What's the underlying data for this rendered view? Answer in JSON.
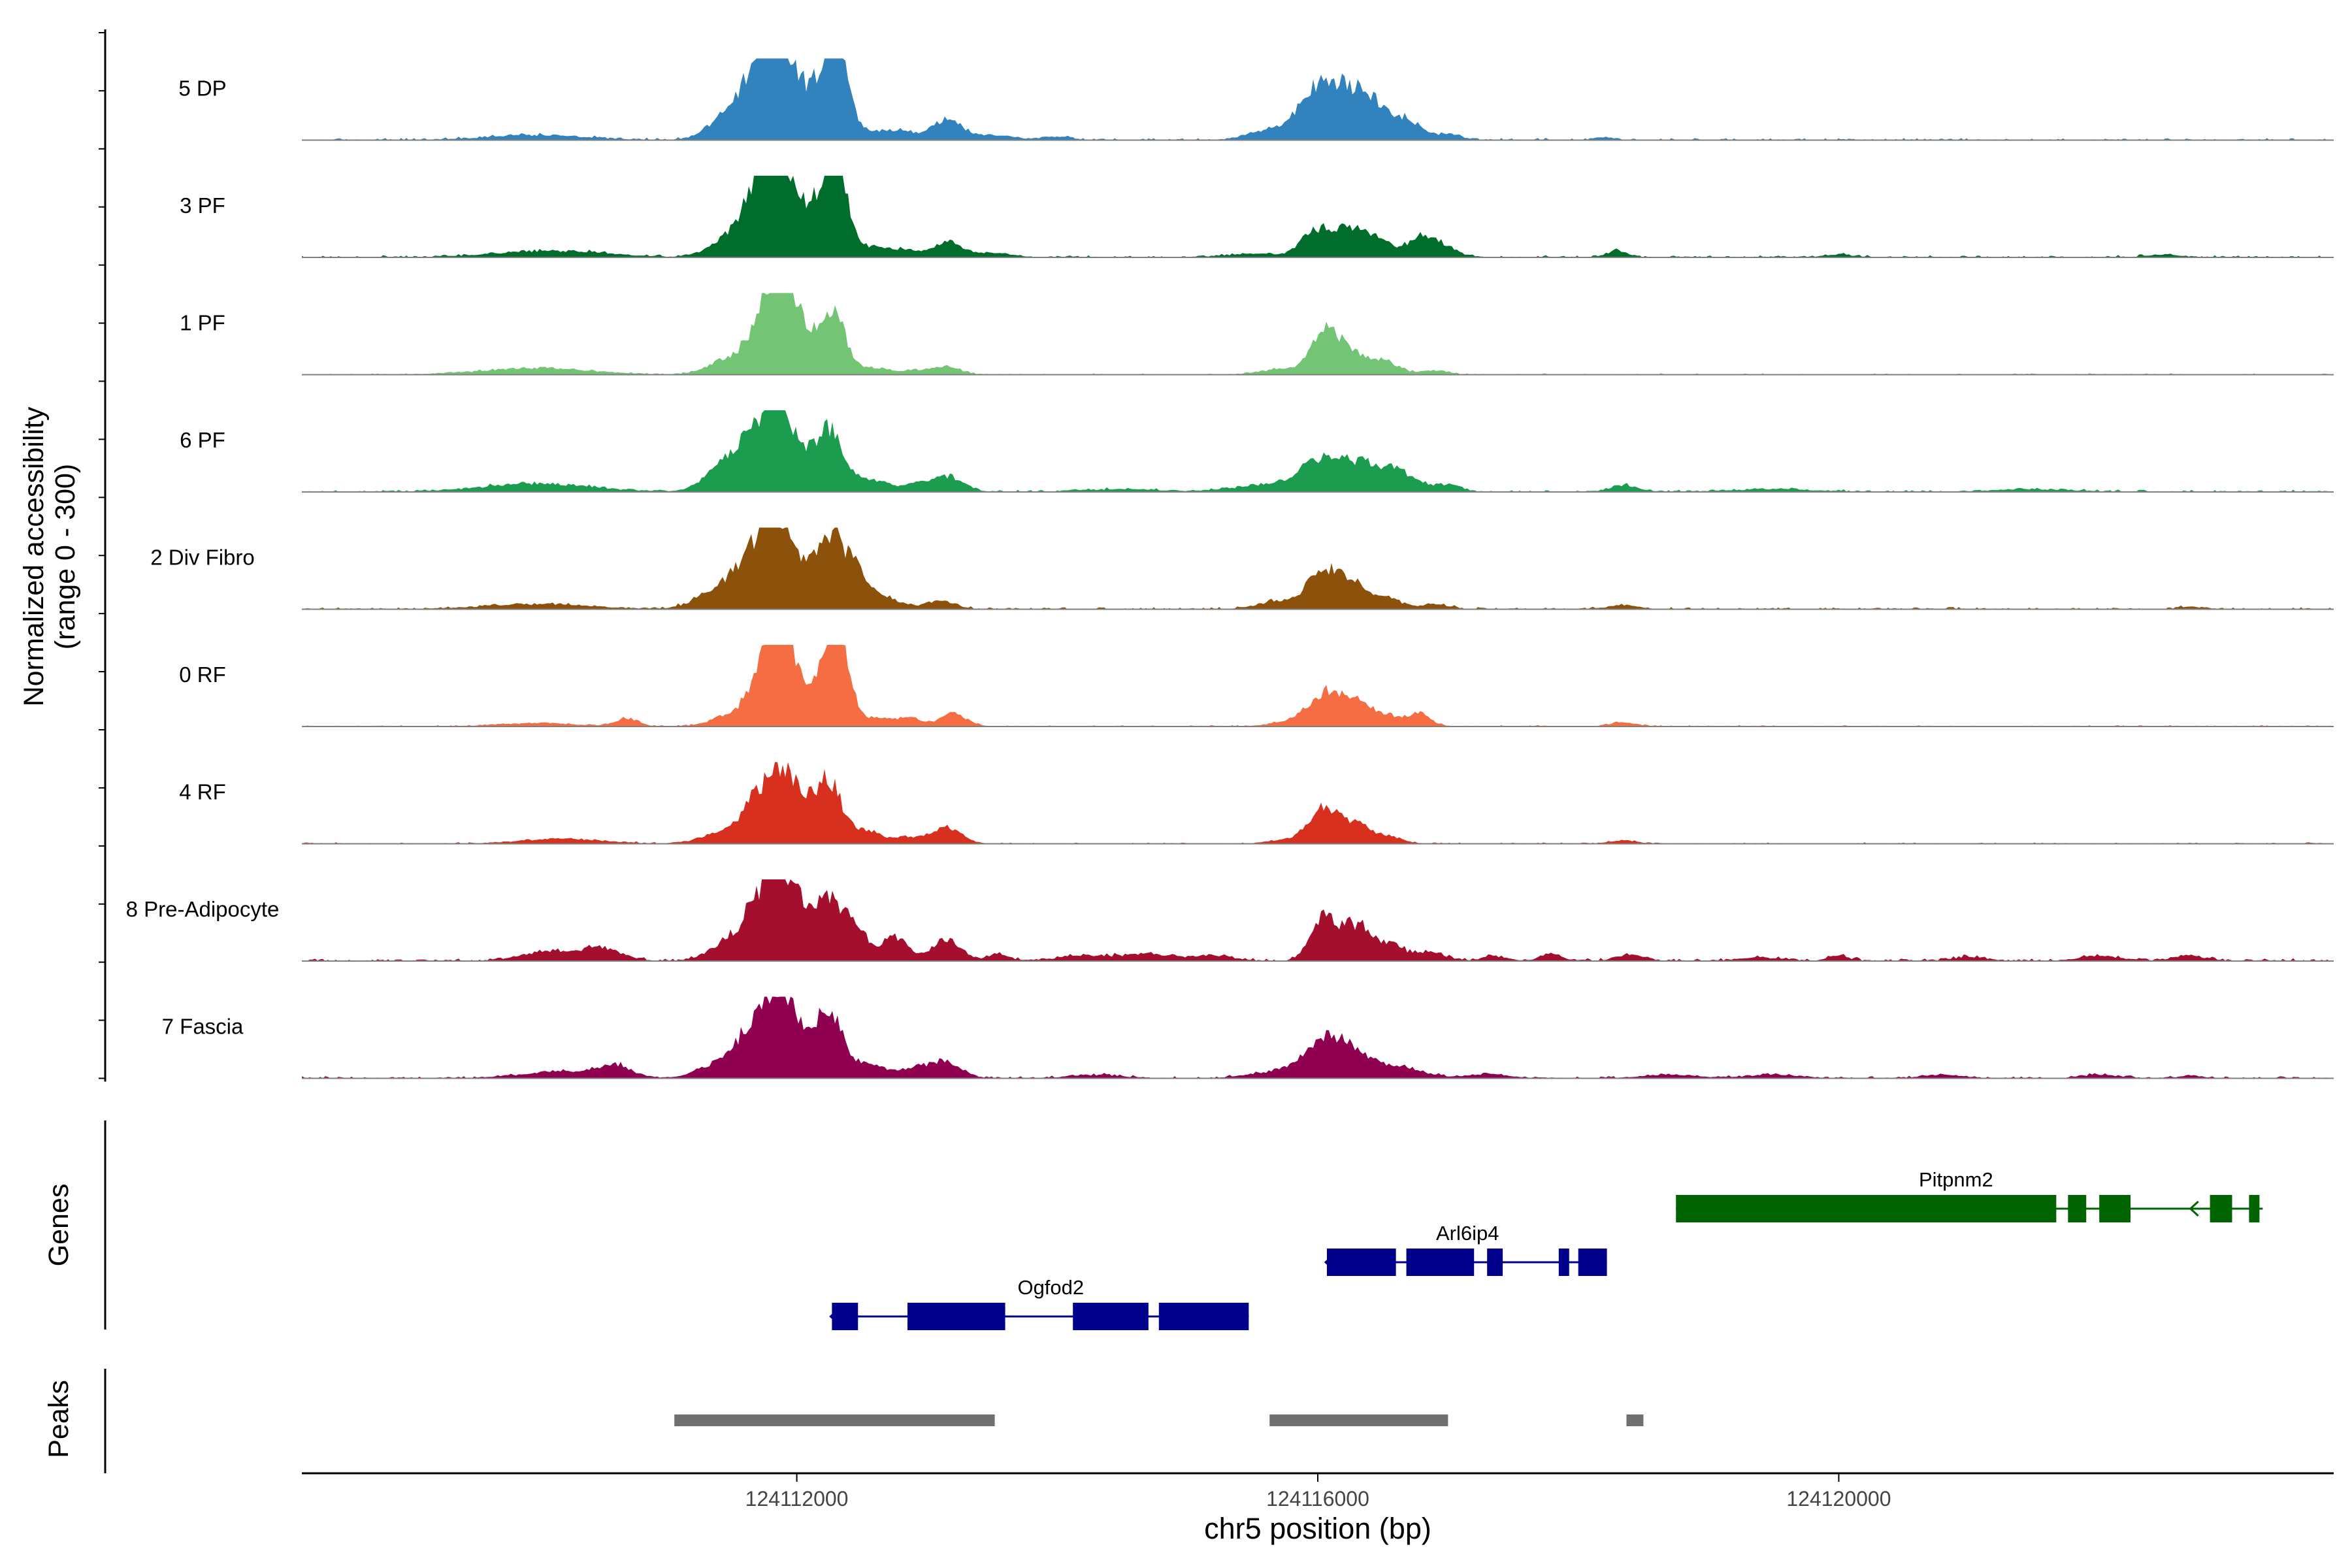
{
  "chart_data": {
    "type": "area",
    "title": "",
    "ylabel": "Normalized accessibility",
    "ylabel_range": "(range 0 - 300)",
    "ylim": [
      0,
      300
    ],
    "xlabel": "chr5 position (bp)",
    "xlim": [
      124108200,
      124123800
    ],
    "x_ticks": [
      124112000,
      124116000,
      124120000
    ],
    "x_tick_labels": [
      "124112000",
      "124116000",
      "124120000"
    ],
    "tracks": [
      {
        "name": "5 DP",
        "color": "#3182BD",
        "peaks": [
          [
            124110000,
            0.06,
            360
          ],
          [
            124111470,
            0.26,
            150
          ],
          [
            124111700,
            0.7,
            130
          ],
          [
            124111870,
            1.0,
            110
          ],
          [
            124112050,
            0.35,
            90
          ],
          [
            124112230,
            0.78,
            90
          ],
          [
            124112330,
            0.8,
            80
          ],
          [
            124112550,
            0.1,
            110
          ],
          [
            124112800,
            0.12,
            100
          ],
          [
            124113150,
            0.25,
            110
          ],
          [
            124113500,
            0.06,
            150
          ],
          [
            124114000,
            0.04,
            100
          ],
          [
            124115600,
            0.1,
            150
          ],
          [
            124115950,
            0.42,
            140
          ],
          [
            124116150,
            0.48,
            150
          ],
          [
            124116400,
            0.45,
            130
          ],
          [
            124116700,
            0.22,
            100
          ],
          [
            124117000,
            0.07,
            100
          ],
          [
            124118200,
            0.03,
            80
          ]
        ],
        "noise": 0.015
      },
      {
        "name": "3 PF",
        "color": "#006D2C",
        "peaks": [
          [
            124110100,
            0.08,
            400
          ],
          [
            124111500,
            0.22,
            160
          ],
          [
            124111700,
            0.65,
            120
          ],
          [
            124111870,
            1.0,
            110
          ],
          [
            124112050,
            0.35,
            90
          ],
          [
            124112230,
            0.78,
            90
          ],
          [
            124112330,
            0.72,
            80
          ],
          [
            124112550,
            0.12,
            100
          ],
          [
            124112800,
            0.1,
            110
          ],
          [
            124113150,
            0.18,
            110
          ],
          [
            124113500,
            0.05,
            150
          ],
          [
            124115500,
            0.04,
            200
          ],
          [
            124116000,
            0.34,
            120
          ],
          [
            124116250,
            0.3,
            100
          ],
          [
            124116450,
            0.22,
            100
          ],
          [
            124116800,
            0.26,
            110
          ],
          [
            124117000,
            0.08,
            100
          ],
          [
            124118300,
            0.08,
            80
          ],
          [
            124120000,
            0.03,
            120
          ],
          [
            124122500,
            0.03,
            120
          ]
        ],
        "noise": 0.015
      },
      {
        "name": "1 PF",
        "color": "#74C476",
        "peaks": [
          [
            124110000,
            0.08,
            400
          ],
          [
            124111500,
            0.2,
            160
          ],
          [
            124111750,
            0.6,
            110
          ],
          [
            124111900,
            1.0,
            100
          ],
          [
            124112060,
            0.3,
            90
          ],
          [
            124112270,
            0.8,
            100
          ],
          [
            124112600,
            0.08,
            110
          ],
          [
            124112900,
            0.05,
            100
          ],
          [
            124113150,
            0.1,
            100
          ],
          [
            124115700,
            0.06,
            150
          ],
          [
            124116050,
            0.5,
            110
          ],
          [
            124116250,
            0.22,
            110
          ],
          [
            124116500,
            0.16,
            120
          ],
          [
            124116900,
            0.05,
            100
          ]
        ],
        "noise": 0.01
      },
      {
        "name": "6 PF",
        "color": "#1C9C4E",
        "peaks": [
          [
            124110000,
            0.1,
            400
          ],
          [
            124111450,
            0.3,
            150
          ],
          [
            124111650,
            0.52,
            120
          ],
          [
            124111850,
            0.95,
            110
          ],
          [
            124112050,
            0.3,
            90
          ],
          [
            124112250,
            0.75,
            100
          ],
          [
            124112550,
            0.16,
            120
          ],
          [
            124112900,
            0.08,
            130
          ],
          [
            124113150,
            0.18,
            120
          ],
          [
            124114500,
            0.03,
            300
          ],
          [
            124115600,
            0.08,
            250
          ],
          [
            124116000,
            0.34,
            150
          ],
          [
            124116300,
            0.3,
            150
          ],
          [
            124116600,
            0.24,
            150
          ],
          [
            124117000,
            0.08,
            100
          ],
          [
            124118350,
            0.08,
            100
          ],
          [
            124119500,
            0.03,
            300
          ],
          [
            124121500,
            0.03,
            300
          ]
        ],
        "noise": 0.015
      },
      {
        "name": "2 Div Fibro",
        "color": "#8C510A",
        "peaks": [
          [
            124110000,
            0.06,
            400
          ],
          [
            124111400,
            0.24,
            160
          ],
          [
            124111650,
            0.55,
            120
          ],
          [
            124111850,
            1.0,
            110
          ],
          [
            124112050,
            0.3,
            90
          ],
          [
            124112250,
            0.85,
            110
          ],
          [
            124112450,
            0.4,
            100
          ],
          [
            124112700,
            0.12,
            120
          ],
          [
            124113100,
            0.1,
            110
          ],
          [
            124115700,
            0.1,
            150
          ],
          [
            124116050,
            0.48,
            120
          ],
          [
            124116300,
            0.28,
            110
          ],
          [
            124116550,
            0.12,
            100
          ],
          [
            124116900,
            0.06,
            100
          ],
          [
            124118350,
            0.05,
            100
          ],
          [
            124122700,
            0.03,
            80
          ]
        ],
        "noise": 0.015
      },
      {
        "name": "0 RF",
        "color": "#F46D43",
        "peaks": [
          [
            124110000,
            0.04,
            300
          ],
          [
            124110700,
            0.1,
            80
          ],
          [
            124111500,
            0.14,
            150
          ],
          [
            124111750,
            0.62,
            110
          ],
          [
            124111880,
            0.95,
            100
          ],
          [
            124112060,
            0.3,
            90
          ],
          [
            124112250,
            0.82,
            90
          ],
          [
            124112350,
            0.65,
            80
          ],
          [
            124112600,
            0.1,
            100
          ],
          [
            124112850,
            0.1,
            100
          ],
          [
            124113200,
            0.16,
            100
          ],
          [
            124115800,
            0.06,
            150
          ],
          [
            124116050,
            0.38,
            120
          ],
          [
            124116300,
            0.3,
            110
          ],
          [
            124116550,
            0.12,
            100
          ],
          [
            124116780,
            0.16,
            80
          ],
          [
            124118350,
            0.05,
            100
          ]
        ],
        "noise": 0.01
      },
      {
        "name": "4 RF",
        "color": "#D7301F",
        "peaks": [
          [
            124110200,
            0.06,
            300
          ],
          [
            124111400,
            0.12,
            150
          ],
          [
            124111650,
            0.4,
            100
          ],
          [
            124111870,
            0.88,
            110
          ],
          [
            124112060,
            0.3,
            90
          ],
          [
            124112250,
            0.74,
            100
          ],
          [
            124112550,
            0.16,
            100
          ],
          [
            124112850,
            0.08,
            100
          ],
          [
            124113150,
            0.2,
            110
          ],
          [
            124115800,
            0.05,
            150
          ],
          [
            124116050,
            0.42,
            110
          ],
          [
            124116300,
            0.22,
            110
          ],
          [
            124116550,
            0.08,
            100
          ],
          [
            124118350,
            0.04,
            100
          ]
        ],
        "noise": 0.01
      },
      {
        "name": "8 Pre-Adipocyte",
        "color": "#A50F2E",
        "peaks": [
          [
            124110100,
            0.12,
            200
          ],
          [
            124110500,
            0.14,
            150
          ],
          [
            124111500,
            0.26,
            150
          ],
          [
            124111700,
            0.55,
            100
          ],
          [
            124111880,
            1.0,
            100
          ],
          [
            124112060,
            0.4,
            90
          ],
          [
            124112250,
            0.7,
            100
          ],
          [
            124112450,
            0.36,
            100
          ],
          [
            124112750,
            0.28,
            100
          ],
          [
            124113150,
            0.26,
            110
          ],
          [
            124113550,
            0.08,
            80
          ],
          [
            124114200,
            0.06,
            200
          ],
          [
            124114700,
            0.08,
            200
          ],
          [
            124115200,
            0.06,
            150
          ],
          [
            124116050,
            0.56,
            100
          ],
          [
            124116300,
            0.42,
            100
          ],
          [
            124116550,
            0.2,
            100
          ],
          [
            124116850,
            0.1,
            120
          ],
          [
            124117350,
            0.06,
            80
          ],
          [
            124117800,
            0.08,
            80
          ],
          [
            124118400,
            0.07,
            100
          ],
          [
            124119400,
            0.04,
            150
          ],
          [
            124120000,
            0.06,
            80
          ],
          [
            124121000,
            0.05,
            120
          ],
          [
            124122000,
            0.06,
            150
          ],
          [
            124122700,
            0.06,
            120
          ]
        ],
        "noise": 0.02
      },
      {
        "name": "7 Fascia",
        "color": "#8F0051",
        "peaks": [
          [
            124110200,
            0.08,
            300
          ],
          [
            124110600,
            0.14,
            120
          ],
          [
            124111400,
            0.18,
            150
          ],
          [
            124111650,
            0.55,
            110
          ],
          [
            124111870,
            0.96,
            110
          ],
          [
            124112060,
            0.36,
            90
          ],
          [
            124112260,
            0.8,
            100
          ],
          [
            124112550,
            0.16,
            120
          ],
          [
            124112900,
            0.12,
            120
          ],
          [
            124113150,
            0.2,
            110
          ],
          [
            124114300,
            0.04,
            200
          ],
          [
            124115700,
            0.08,
            200
          ],
          [
            124116050,
            0.38,
            150
          ],
          [
            124116300,
            0.26,
            180
          ],
          [
            124116700,
            0.1,
            150
          ],
          [
            124117300,
            0.05,
            150
          ],
          [
            124118700,
            0.04,
            200
          ],
          [
            124119500,
            0.04,
            200
          ],
          [
            124120800,
            0.04,
            150
          ],
          [
            124122000,
            0.04,
            150
          ],
          [
            124122700,
            0.03,
            80
          ]
        ],
        "noise": 0.015
      }
    ],
    "genes": [
      {
        "name": "Ogfod2",
        "color": "#00008B",
        "row": 2,
        "start": 124112270,
        "end": 124115470,
        "strand": "-",
        "exons": [
          [
            124112270,
            124112470
          ],
          [
            124112850,
            124113600
          ],
          [
            124114120,
            124114700
          ],
          [
            124114780,
            124115470
          ]
        ]
      },
      {
        "name": "Arl6ip4",
        "color": "#00008B",
        "row": 1,
        "start": 124116070,
        "end": 124118220,
        "strand": "-",
        "exons": [
          [
            124116070,
            124116600
          ],
          [
            124116680,
            124117200
          ],
          [
            124117300,
            124117420
          ],
          [
            124117850,
            124117930
          ],
          [
            124118000,
            124118220
          ]
        ]
      },
      {
        "name": "Pitpnm2",
        "color": "#006400",
        "row": 0,
        "start": 124118750,
        "end": 124123230,
        "strand": "-",
        "exons": [
          [
            124118750,
            124121670
          ],
          [
            124121760,
            124121900
          ],
          [
            124122000,
            124122240
          ],
          [
            124122850,
            124123020
          ],
          [
            124123150,
            124123230
          ]
        ]
      }
    ],
    "peaks_track": [
      [
        124111060,
        124113520
      ],
      [
        124115630,
        124117000
      ],
      [
        124118370,
        124118500
      ]
    ],
    "panel_labels": {
      "genes": "Genes",
      "peaks": "Peaks"
    },
    "peak_color": "#707070"
  }
}
